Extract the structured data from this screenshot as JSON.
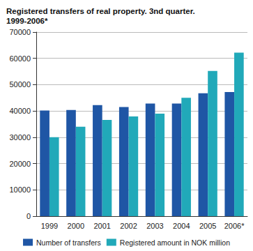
{
  "chart_data": {
    "type": "bar",
    "title": "Registered transfers of real property. 3nd quarter. 1999-2006*",
    "categories": [
      "1999",
      "2000",
      "2001",
      "2002",
      "2003",
      "2004",
      "2005",
      "2006*"
    ],
    "series": [
      {
        "name": "Number of transfers",
        "color": "#1f56a5",
        "values": [
          40200,
          40400,
          42200,
          41500,
          42800,
          42800,
          46700,
          47200
        ]
      },
      {
        "name": "Registered amount in NOK million",
        "color": "#21a9b9",
        "values": [
          30000,
          34000,
          36600,
          37900,
          39000,
          45000,
          55200,
          62200
        ]
      }
    ],
    "ylim": [
      0,
      70000
    ],
    "yticks": [
      0,
      10000,
      20000,
      30000,
      40000,
      50000,
      60000,
      70000
    ],
    "grid": true,
    "legend": "bottom"
  }
}
